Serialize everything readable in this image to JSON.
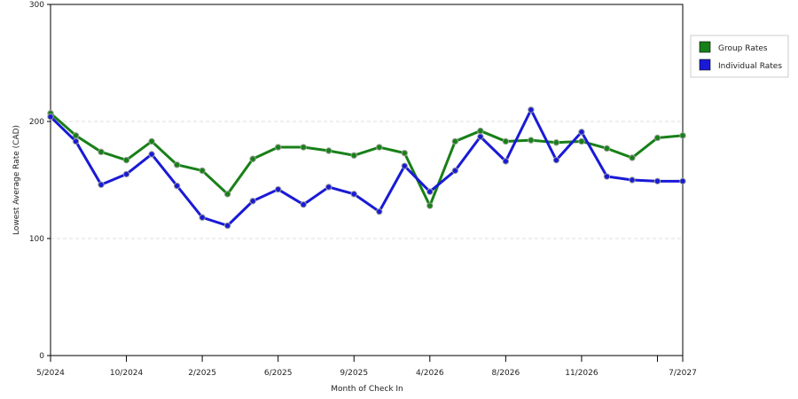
{
  "chart_data": {
    "type": "line",
    "xlabel": "Month of Check In",
    "ylabel": "Lowest Average Rate (CAD)",
    "ylim": [
      0,
      300
    ],
    "yticks": [
      0,
      100,
      200,
      300
    ],
    "x_tick_labels": [
      "5/2024",
      "10/2024",
      "2/2025",
      "6/2025",
      "9/2025",
      "4/2026",
      "8/2026",
      "11/2026",
      "7/2027"
    ],
    "x_tick_label_positions": [
      0,
      3,
      6,
      9,
      12,
      15,
      18,
      21,
      25
    ],
    "x_extra_tick_positions": [
      24
    ],
    "grid_y": true,
    "legend_position": "top-right",
    "series": [
      {
        "name": "Group Rates",
        "color": "#188018",
        "values": [
          207,
          188,
          174,
          167,
          183,
          163,
          158,
          138,
          168,
          178,
          178,
          175,
          171,
          178,
          173,
          128,
          183,
          192,
          183,
          184,
          182,
          183,
          177,
          169,
          186,
          188
        ]
      },
      {
        "name": "Individual Rates",
        "color": "#1a1ad6",
        "values": [
          204,
          183,
          146,
          155,
          172,
          145,
          118,
          111,
          132,
          142,
          129,
          144,
          138,
          123,
          162,
          140,
          158,
          187,
          166,
          210,
          167,
          191,
          153,
          150,
          149,
          149
        ]
      }
    ]
  }
}
